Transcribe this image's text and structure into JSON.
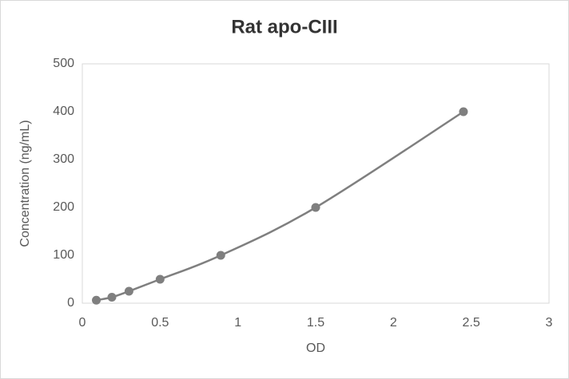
{
  "chart_data": {
    "type": "scatter",
    "title": "Rat apo-CIII",
    "x_label": "OD",
    "y_label": "Concentration (ng/mL)",
    "series": [
      {
        "color": "#7f7f7f",
        "x": [
          0.09,
          0.19,
          0.3,
          0.5,
          0.89,
          1.5,
          2.45
        ],
        "values": [
          6.25,
          12.5,
          25,
          50,
          100,
          200,
          400
        ]
      }
    ],
    "smooth_line": true,
    "xlim": [
      0,
      3
    ],
    "xticks": [
      0,
      0.5,
      1,
      1.5,
      2,
      2.5,
      3
    ],
    "ylim": [
      0,
      500
    ],
    "yticks": [
      0,
      100,
      200,
      300,
      400,
      500
    ],
    "grid": false
  }
}
